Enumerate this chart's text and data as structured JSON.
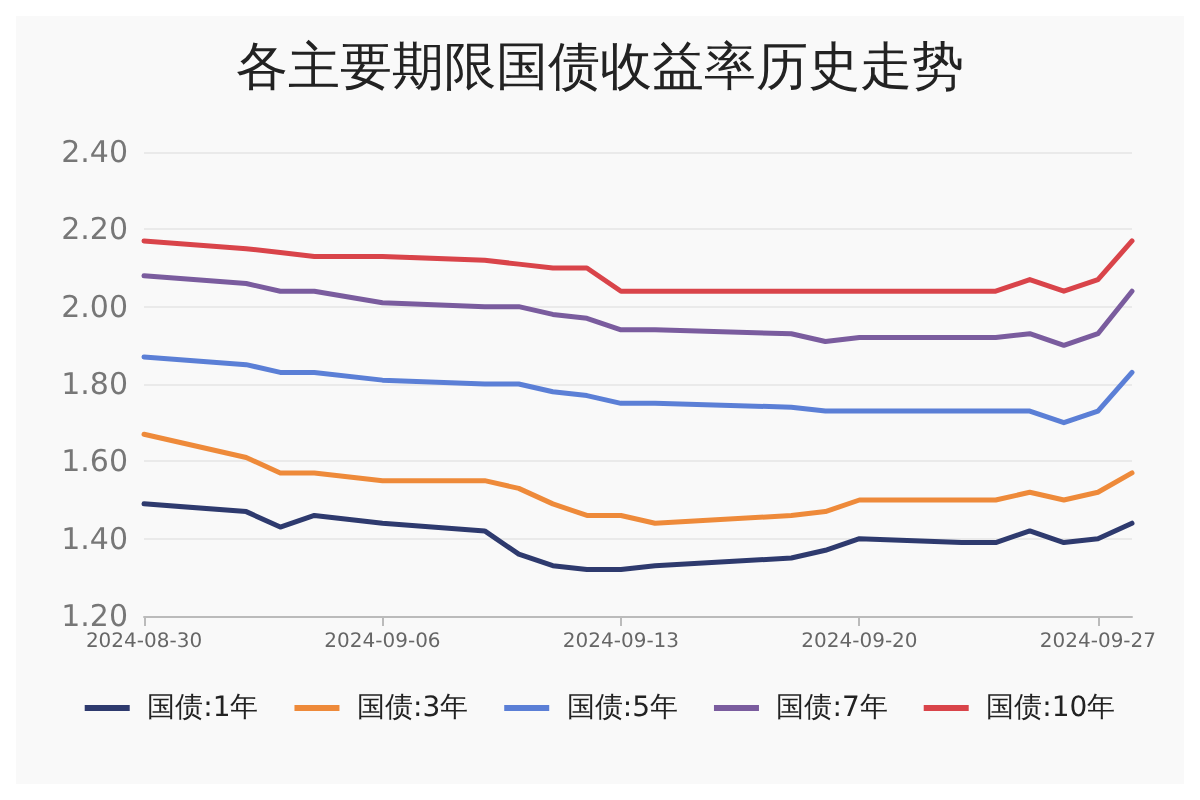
{
  "chart_data": {
    "type": "line",
    "title": "各主要期限国债收益率历史走势",
    "x": [
      "2024-08-30",
      "2024-09-02",
      "2024-09-03",
      "2024-09-04",
      "2024-09-06",
      "2024-09-09",
      "2024-09-10",
      "2024-09-11",
      "2024-09-12",
      "2024-09-13",
      "2024-09-14",
      "2024-09-18",
      "2024-09-19",
      "2024-09-20",
      "2024-09-23",
      "2024-09-24",
      "2024-09-25",
      "2024-09-26",
      "2024-09-27",
      "2024-09-28"
    ],
    "series": [
      {
        "name": "国债:1年",
        "color": "#2e3a6e",
        "values": [
          1.49,
          1.47,
          1.43,
          1.46,
          1.44,
          1.42,
          1.36,
          1.33,
          1.32,
          1.32,
          1.33,
          1.35,
          1.37,
          1.4,
          1.39,
          1.39,
          1.42,
          1.39,
          1.4,
          1.44
        ]
      },
      {
        "name": "国债:3年",
        "color": "#ee8a3a",
        "values": [
          1.67,
          1.61,
          1.57,
          1.57,
          1.55,
          1.55,
          1.53,
          1.49,
          1.46,
          1.46,
          1.44,
          1.46,
          1.47,
          1.5,
          1.5,
          1.5,
          1.52,
          1.5,
          1.52,
          1.57
        ]
      },
      {
        "name": "国债:5年",
        "color": "#5b7fd6",
        "values": [
          1.87,
          1.85,
          1.83,
          1.83,
          1.81,
          1.8,
          1.8,
          1.78,
          1.77,
          1.75,
          1.75,
          1.74,
          1.73,
          1.73,
          1.73,
          1.73,
          1.73,
          1.7,
          1.73,
          1.83
        ]
      },
      {
        "name": "国债:7年",
        "color": "#7a5c9e",
        "values": [
          2.08,
          2.06,
          2.04,
          2.04,
          2.01,
          2.0,
          2.0,
          1.98,
          1.97,
          1.94,
          1.94,
          1.93,
          1.91,
          1.92,
          1.92,
          1.92,
          1.93,
          1.9,
          1.93,
          2.04
        ]
      },
      {
        "name": "国债:10年",
        "color": "#d9444a",
        "values": [
          2.17,
          2.15,
          2.14,
          2.13,
          2.13,
          2.12,
          2.11,
          2.1,
          2.1,
          2.04,
          2.04,
          2.04,
          2.04,
          2.04,
          2.04,
          2.04,
          2.07,
          2.04,
          2.07,
          2.17
        ]
      }
    ],
    "xlim": [
      "2024-08-30",
      "2024-09-28"
    ],
    "xticks": [
      "2024-08-30",
      "2024-09-06",
      "2024-09-13",
      "2024-09-20",
      "2024-09-27"
    ],
    "ylim": [
      1.2,
      2.4
    ],
    "yticks": [
      {
        "value": 1.2,
        "label": "1.20"
      },
      {
        "value": 1.4,
        "label": "1.40"
      },
      {
        "value": 1.6,
        "label": "1.60"
      },
      {
        "value": 1.8,
        "label": "1.80"
      },
      {
        "value": 2.0,
        "label": "2.00"
      },
      {
        "value": 2.2,
        "label": "2.20"
      },
      {
        "value": 2.4,
        "label": "2.40"
      }
    ],
    "grid": "y",
    "legend": "bottom",
    "marker": "none",
    "line_style": "solid"
  }
}
